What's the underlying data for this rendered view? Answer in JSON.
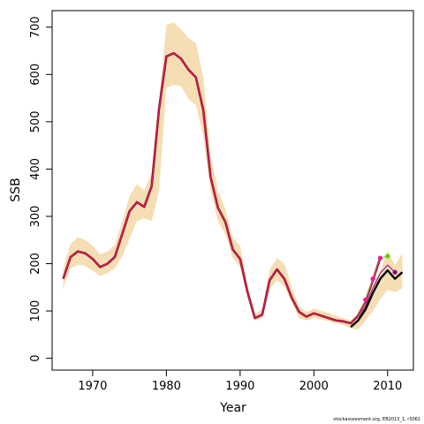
{
  "chart_data": {
    "type": "line",
    "title": "",
    "xlabel": "Year",
    "ylabel": "SSB",
    "xlim": [
      1964.5,
      2013.5
    ],
    "ylim": [
      -25,
      735
    ],
    "x_ticks": [
      1970,
      1980,
      1990,
      2000,
      2010
    ],
    "y_ticks": [
      0,
      100,
      200,
      300,
      400,
      500,
      600,
      700
    ],
    "colors": {
      "band": "#f5deb3",
      "main": "#8b1a1a",
      "main_overlay": "#ff1493",
      "final": "#000000",
      "retro_red": "#ff1493",
      "retro_green": "#66cc00",
      "retro_purple": "#8b008b"
    },
    "series": [
      {
        "x": [
          1966,
          1967,
          1968,
          1969,
          1970,
          1971,
          1972,
          1973,
          1974,
          1975,
          1976,
          1977,
          1978,
          1979,
          1980,
          1981,
          1982,
          1983,
          1984,
          1985,
          1986,
          1987,
          1988,
          1989,
          1990,
          1991,
          1992,
          1993,
          1994,
          1995,
          1996,
          1997,
          1998,
          1999,
          2000,
          2001,
          2002,
          2003,
          2004,
          2005,
          2006,
          2007,
          2008,
          2009,
          2010,
          2011,
          2012
        ],
        "band_low": [
          148,
          190,
          198,
          195,
          185,
          174,
          180,
          190,
          215,
          253,
          290,
          296,
          290,
          355,
          572,
          578,
          575,
          548,
          535,
          470,
          352,
          290,
          262,
          212,
          192,
          130,
          80,
          85,
          145,
          165,
          152,
          118,
          85,
          80,
          85,
          82,
          78,
          74,
          70,
          64,
          61,
          80,
          100,
          125,
          145,
          140,
          148
        ],
        "band_high": [
          190,
          242,
          256,
          250,
          238,
          220,
          225,
          240,
          288,
          343,
          368,
          355,
          392,
          545,
          705,
          710,
          695,
          677,
          666,
          595,
          430,
          355,
          315,
          255,
          238,
          155,
          94,
          103,
          188,
          212,
          200,
          150,
          110,
          98,
          105,
          100,
          96,
          90,
          85,
          80,
          87,
          115,
          155,
          184,
          228,
          197,
          222
        ]
      },
      {
        "x": [
          1966,
          1967,
          1968,
          1969,
          1970,
          1971,
          1972,
          1973,
          1974,
          1975,
          1976,
          1977,
          1978,
          1979,
          1980,
          1981,
          1982,
          1983,
          1984,
          1985,
          1986,
          1987,
          1988,
          1989,
          1990,
          1991,
          1992,
          1993,
          1994,
          1995,
          1996,
          1997,
          1998,
          1999,
          2000,
          2001,
          2002,
          2003,
          2004,
          2005,
          2006,
          2007,
          2008,
          2009
        ],
        "y": [
          168,
          214,
          226,
          222,
          210,
          193,
          200,
          214,
          262,
          311,
          330,
          320,
          364,
          527,
          638,
          645,
          633,
          610,
          594,
          525,
          383,
          318,
          288,
          230,
          210,
          140,
          85,
          92,
          165,
          188,
          168,
          128,
          98,
          88,
          95,
          90,
          85,
          80,
          78,
          74,
          90,
          120,
          165,
          212
        ]
      },
      {
        "x": [
          2006,
          2007,
          2008,
          2009,
          2010
        ],
        "y": [
          88,
          124,
          168,
          212,
          216
        ]
      },
      {
        "x": [
          2006,
          2007,
          2008,
          2009,
          2010,
          2011
        ],
        "y": [
          82,
          110,
          148,
          180,
          197,
          182
        ]
      },
      {
        "x": [
          2005,
          2006,
          2007,
          2008,
          2009,
          2010,
          2011,
          2012
        ],
        "y": [
          66,
          80,
          103,
          138,
          168,
          186,
          168,
          182
        ]
      }
    ],
    "points": {
      "red": [
        [
          2007,
          124
        ],
        [
          2008,
          168
        ],
        [
          2009,
          212
        ]
      ],
      "green": [
        [
          2010,
          216
        ]
      ],
      "purple": [
        [
          2011,
          182
        ]
      ]
    }
  },
  "footer": "stockassessment.org, EB2013_1, r3061"
}
